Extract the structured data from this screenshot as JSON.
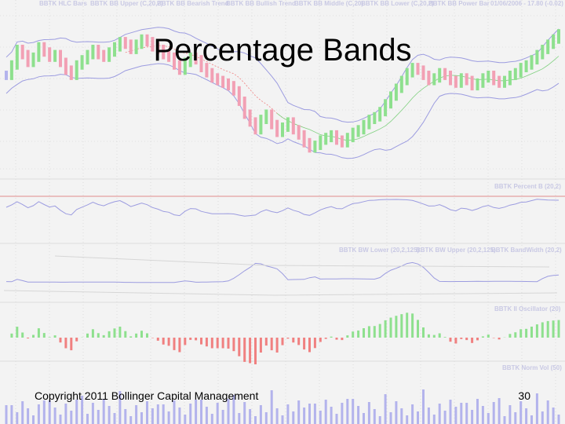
{
  "slide": {
    "title": "Percentage Bands",
    "footer_left": "Copyright 2011 Bollinger Capital Management",
    "page_number": "30"
  },
  "colors": {
    "background": "#f3f3f3",
    "band": "#9c9ce0",
    "grid": "#cfcfcf",
    "up_candle": "#8ee08e",
    "down_candle": "#f2a0b4",
    "neutral_candle": "#b3b3ec",
    "bearish_trend": "#f08080",
    "bullish_trend": "#7fd07f",
    "oscillator_positive": "#8ee08e",
    "oscillator_negative": "#f08080",
    "volume": "#b3b3ec",
    "panel_line": "#9c9ce0",
    "reference_line": "#e28b8b"
  },
  "chart_data": {
    "type": "line",
    "price_panel_legend": [
      "BBTK HLC Bars",
      "BBTK BB Upper (C,20,2)",
      "BBTK BB Bearish Trend",
      "BBTK BB Bullish Trend",
      "BBTK BB Middle (C,20)",
      "BBTK BB Lower (C,20,2)",
      "BBTK BB Power Bar",
      "01/06/2006 - 17.80 (-0.02)"
    ],
    "percent_b_label": "BBTK Percent B (20,2)",
    "bandwidth_labels": [
      "BBTK BW Lower (20,2,125)",
      "BBTK BW Upper (20,2,125)",
      "BBTK BandWidth (20,2)"
    ],
    "oscillator_label": "BBTK II Oscillator (20)",
    "volume_label": "BBTK Norm Vol (50)",
    "close_series": [
      16.2,
      16.6,
      17.2,
      17.0,
      16.7,
      16.9,
      17.3,
      17.1,
      16.9,
      17.0,
      16.7,
      16.4,
      16.2,
      16.6,
      16.8,
      17.0,
      17.2,
      17.0,
      16.9,
      17.1,
      17.3,
      17.5,
      17.4,
      17.2,
      17.4,
      17.6,
      17.5,
      17.3,
      17.2,
      17.0,
      16.9,
      16.6,
      16.4,
      16.7,
      16.9,
      16.8,
      16.5,
      16.3,
      16.1,
      16.0,
      15.9,
      15.8,
      15.6,
      15.2,
      14.7,
      14.4,
      14.1,
      14.5,
      14.7,
      14.3,
      14.0,
      14.2,
      14.4,
      14.1,
      13.9,
      13.6,
      13.4,
      13.5,
      13.7,
      13.8,
      13.9,
      13.7,
      13.6,
      13.8,
      14.0,
      14.1,
      14.3,
      14.5,
      14.6,
      14.8,
      15.1,
      15.4,
      15.7,
      16.0,
      16.3,
      16.5,
      16.4,
      16.2,
      16.0,
      16.1,
      16.3,
      16.2,
      16.0,
      15.9,
      16.1,
      16.0,
      15.8,
      15.9,
      16.1,
      16.2,
      16.0,
      15.9,
      16.0,
      16.2,
      16.3,
      16.5,
      16.6,
      16.8,
      17.0,
      17.2,
      17.4,
      17.6,
      17.8
    ]
  }
}
